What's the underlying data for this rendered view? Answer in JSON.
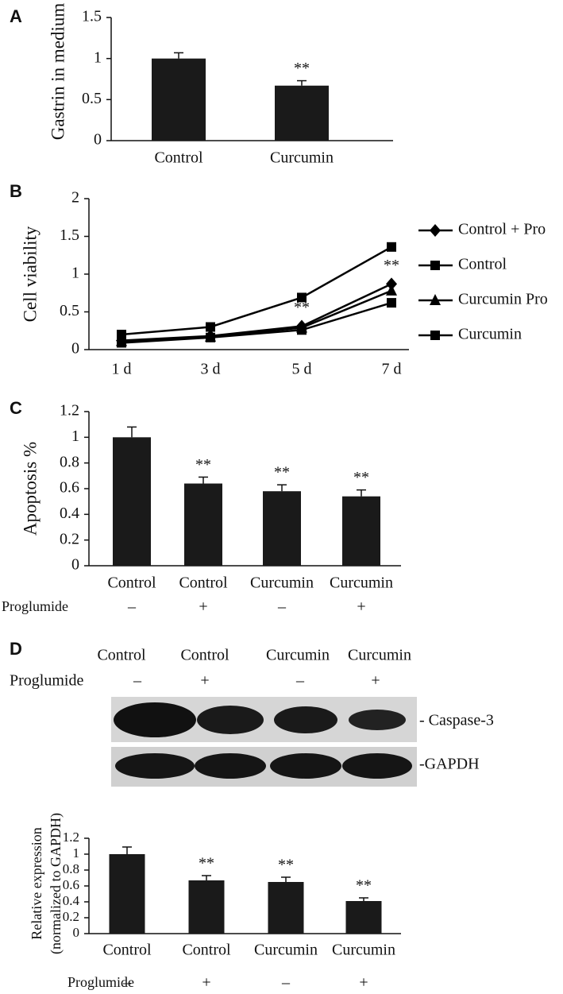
{
  "chart_data": [
    {
      "type": "bar",
      "panel": "A",
      "y_label": [
        "Gastrin in medium"
      ],
      "categories": [
        "Control",
        "Curcumin"
      ],
      "values": [
        1,
        0.67
      ],
      "errors": [
        0.07,
        0.06
      ],
      "significance": [
        null,
        "**"
      ],
      "color": "#1a1a1a",
      "ylim": [
        0,
        1.5
      ],
      "yticks": [
        0,
        0.5,
        1,
        1.5
      ]
    },
    {
      "type": "line",
      "panel": "B",
      "y_label": [
        "Cell viability"
      ],
      "categories": [
        "1 d",
        "3 d",
        "5 d",
        "7 d"
      ],
      "series": [
        {
          "name": "Control + Pro",
          "color": "#000000",
          "marker": "diamond",
          "values": [
            0.12,
            0.18,
            0.31,
            0.87
          ]
        },
        {
          "name": "Control",
          "color": "#000000",
          "marker": "square",
          "values": [
            0.2,
            0.3,
            0.69,
            1.36
          ]
        },
        {
          "name": "Curcumin Pro",
          "color": "#000000",
          "marker": "triangle",
          "values": [
            0.11,
            0.17,
            0.29,
            0.78
          ]
        },
        {
          "name": "Curcumin",
          "color": "#000000",
          "marker": "square",
          "values": [
            0.09,
            0.16,
            0.26,
            0.62
          ]
        }
      ],
      "annotations": [
        {
          "text": "**",
          "x": "5 d"
        },
        {
          "text": "**",
          "x": "7 d"
        }
      ],
      "ylim": [
        0,
        2
      ],
      "yticks": [
        0,
        0.5,
        1,
        1.5,
        2
      ],
      "legend": "right"
    },
    {
      "type": "bar",
      "panel": "C",
      "y_label": [
        "Apoptosis %"
      ],
      "categories": [
        "Control",
        "Control",
        "Curcumin",
        "Curcumin"
      ],
      "group_label": "Proglumide",
      "group_values": [
        "–",
        "+",
        "–",
        "+"
      ],
      "values": [
        1,
        0.64,
        0.58,
        0.54
      ],
      "errors": [
        0.08,
        0.05,
        0.05,
        0.05
      ],
      "significance": [
        null,
        "**",
        "**",
        "**"
      ],
      "color": "#1a1a1a",
      "ylim": [
        0,
        1.2
      ],
      "yticks": [
        0,
        0.2,
        0.4,
        0.6,
        0.8,
        1,
        1.2
      ]
    },
    {
      "type": "bar",
      "panel": "D",
      "y_label": [
        "Relative expression",
        "(normalized to GAPDH)"
      ],
      "categories": [
        "Control",
        "Control",
        "Curcumin",
        "Curcumin"
      ],
      "group_label": "Proglumide",
      "group_values": [
        "–",
        "+",
        "–",
        "+"
      ],
      "values": [
        1,
        0.67,
        0.65,
        0.41
      ],
      "errors": [
        0.09,
        0.06,
        0.06,
        0.04
      ],
      "significance": [
        null,
        "**",
        "**",
        "**"
      ],
      "color": "#1a1a1a",
      "ylim": [
        0,
        1.2
      ],
      "yticks": [
        0,
        0.2,
        0.4,
        0.6,
        0.8,
        1,
        1.2
      ]
    }
  ],
  "blot": {
    "lanes": [
      "Control",
      "Control",
      "Curcumin",
      "Curcumin"
    ],
    "group_label": "Proglumide",
    "group_values": [
      "–",
      "+",
      "–",
      "+"
    ],
    "bands": [
      "- Caspase-3",
      "-GAPDH"
    ]
  }
}
